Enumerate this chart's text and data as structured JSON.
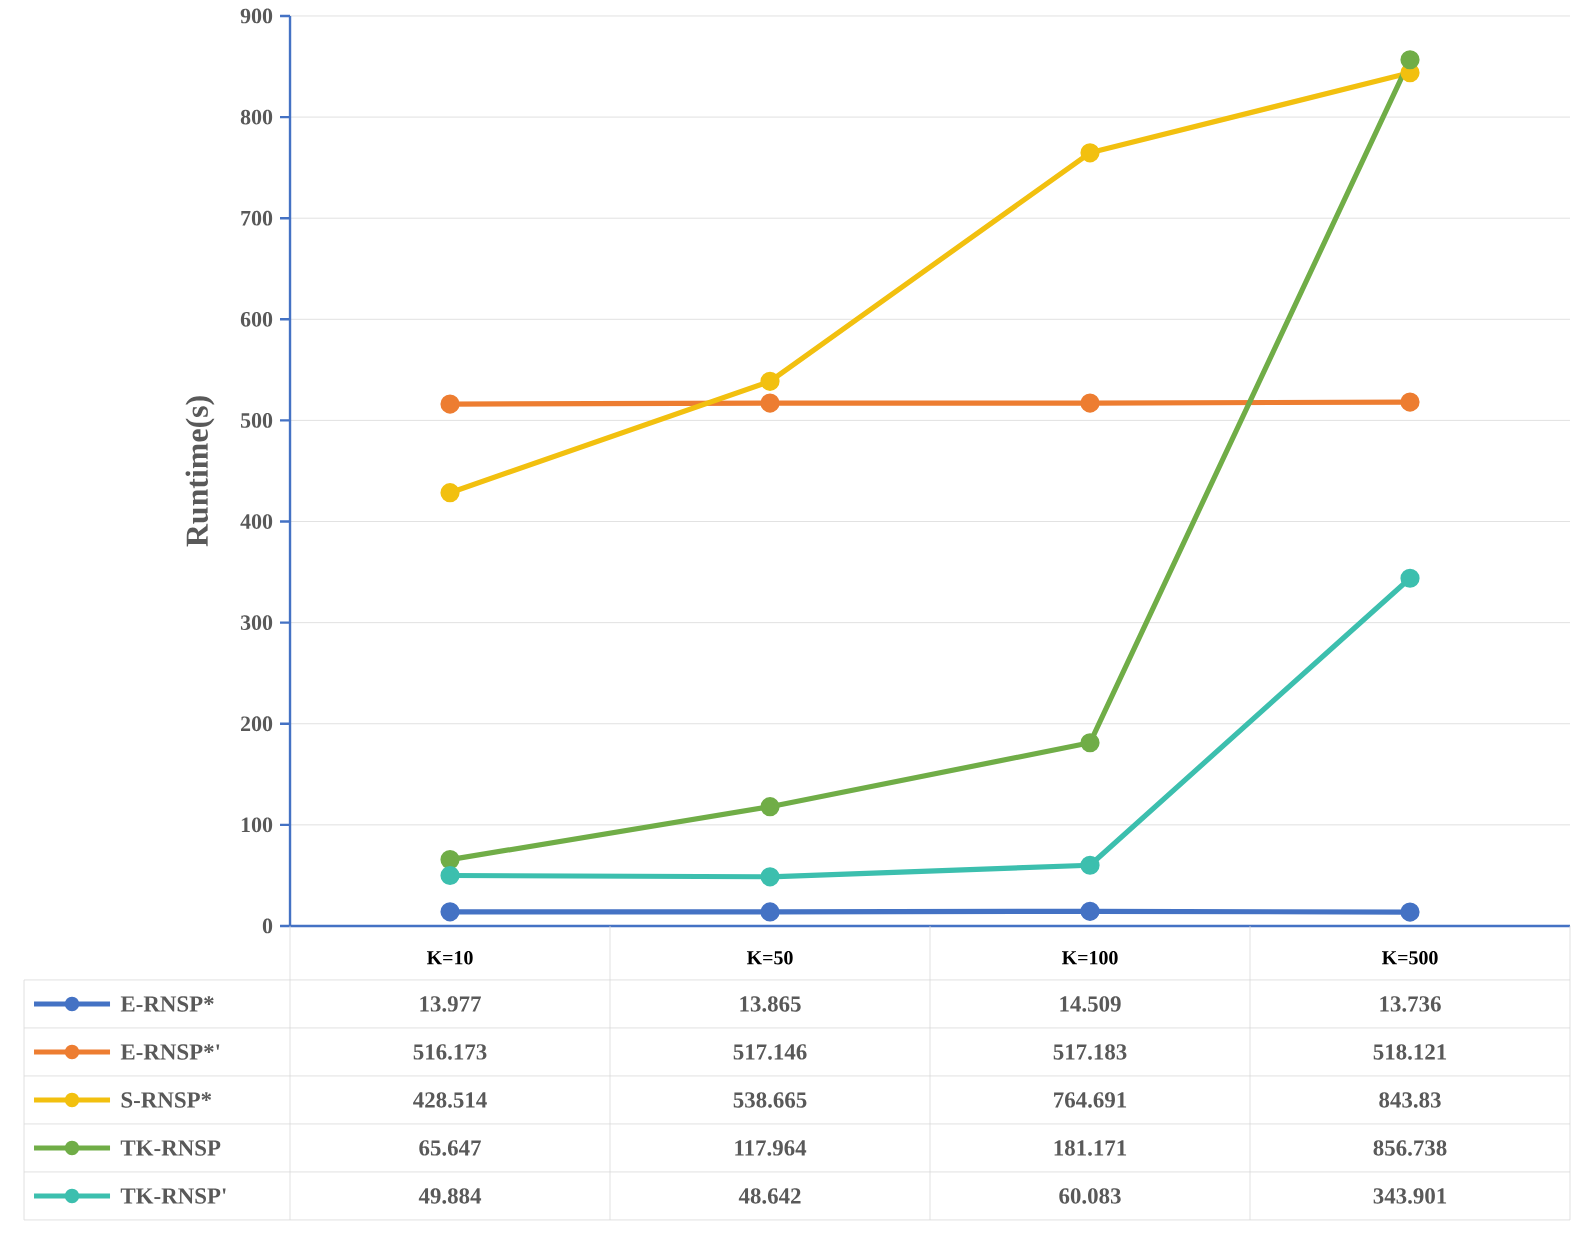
{
  "chart_data": {
    "type": "line",
    "ylabel": "Runtime(s)",
    "categories": [
      "K=10",
      "K=50",
      "K=100",
      "K=500"
    ],
    "series": [
      {
        "name": "E-RNSP*",
        "color": "#4472c4",
        "values": [
          13.977,
          13.865,
          14.509,
          13.736
        ],
        "value_labels": [
          "13.977",
          "13.865",
          "14.509",
          "13.736"
        ]
      },
      {
        "name": "E-RNSP*'",
        "color": "#ed7d31",
        "values": [
          516.173,
          517.146,
          517.183,
          518.121
        ],
        "value_labels": [
          "516.173",
          "517.146",
          "517.183",
          "518.121"
        ]
      },
      {
        "name": "S-RNSP*",
        "color": "#f2c00f",
        "values": [
          428.514,
          538.665,
          764.691,
          843.83
        ],
        "value_labels": [
          "428.514",
          "538.665",
          "764.691",
          "843.83"
        ]
      },
      {
        "name": "TK-RNSP",
        "color": "#70ad47",
        "values": [
          65.647,
          117.964,
          181.171,
          856.738
        ],
        "value_labels": [
          "65.647",
          "117.964",
          "181.171",
          "856.738"
        ]
      },
      {
        "name": "TK-RNSP'",
        "color": "#3cbfae",
        "values": [
          49.884,
          48.642,
          60.083,
          343.901
        ],
        "value_labels": [
          "49.884",
          "48.642",
          "60.083",
          "343.901"
        ]
      }
    ],
    "ylim": [
      0,
      900
    ],
    "yticks": [
      0,
      100,
      200,
      300,
      400,
      500,
      600,
      700,
      800,
      900
    ],
    "grid": "y",
    "legend": "bottom",
    "marker": "circle",
    "line_style": "solid"
  }
}
